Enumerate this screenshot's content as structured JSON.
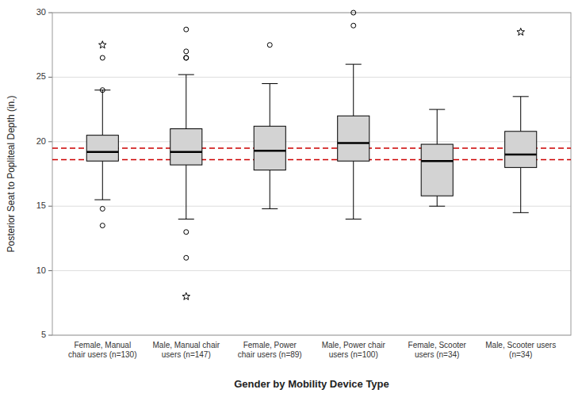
{
  "chart_data": {
    "type": "box",
    "x_label": "Gender by Mobility Device Type",
    "y_label": "Posterior Seat to Popliteal Depth (in.)",
    "ylim": [
      5,
      30
    ],
    "yticks": [
      5,
      10,
      15,
      20,
      25,
      30
    ],
    "grid": true,
    "color": "#d3d3d3",
    "categories": [
      "Female, Manual\nchair users (n=130)",
      "Male, Manual chair\nusers (n=147)",
      "Female, Power\nchair users (n=89)",
      "Male, Power chair\nusers (n=100)",
      "Female, Scooter\nusers (n=34)",
      "Male, Scooter users\n(n=34)"
    ],
    "boxes": [
      {
        "q1": 18.5,
        "median": 19.2,
        "q3": 20.5,
        "whisker_low": 15.5,
        "whisker_high": 24.0,
        "outliers_circle": [
          26.5,
          24.0,
          14.8,
          13.5
        ],
        "outliers_star": [
          27.5
        ]
      },
      {
        "q1": 18.2,
        "median": 19.2,
        "q3": 21.0,
        "whisker_low": 14.0,
        "whisker_high": 25.2,
        "outliers_circle": [
          28.7,
          27.0,
          26.5,
          26.5,
          13.0,
          11.0
        ],
        "outliers_star": [
          8.0
        ]
      },
      {
        "q1": 17.8,
        "median": 19.3,
        "q3": 21.2,
        "whisker_low": 14.8,
        "whisker_high": 24.5,
        "outliers_circle": [
          27.5
        ],
        "outliers_star": []
      },
      {
        "q1": 18.5,
        "median": 19.9,
        "q3": 22.0,
        "whisker_low": 14.0,
        "whisker_high": 26.0,
        "outliers_circle": [
          30.0,
          29.0
        ],
        "outliers_star": []
      },
      {
        "q1": 15.8,
        "median": 18.5,
        "q3": 19.8,
        "whisker_low": 15.0,
        "whisker_high": 22.5,
        "outliers_circle": [],
        "outliers_star": []
      },
      {
        "q1": 18.0,
        "median": 19.0,
        "q3": 20.8,
        "whisker_low": 14.5,
        "whisker_high": 23.5,
        "outliers_circle": [],
        "outliers_star": [
          28.5
        ]
      }
    ],
    "reference_lines": {
      "values": [
        18.6,
        19.5
      ],
      "color": "#cc0000",
      "line_style": "dashed"
    }
  }
}
